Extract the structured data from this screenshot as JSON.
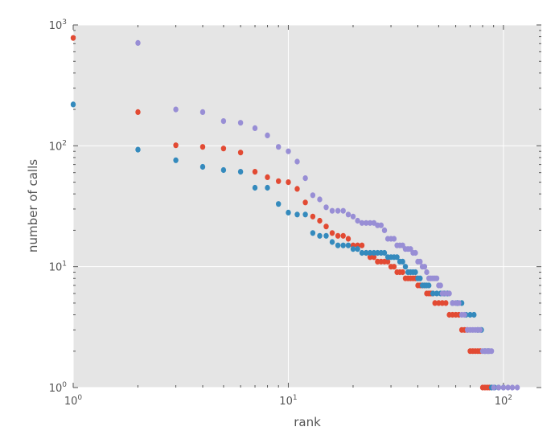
{
  "chart_data": {
    "type": "scatter",
    "title": "",
    "xlabel": "rank",
    "ylabel": "number of calls",
    "xscale": "log",
    "yscale": "log",
    "xlim": [
      1,
      150
    ],
    "ylim": [
      1,
      1000
    ],
    "grid": true,
    "legend": null,
    "x_tick_labels": [
      {
        "value": 1,
        "base": "10",
        "exp": "0"
      },
      {
        "value": 10,
        "base": "10",
        "exp": "1"
      },
      {
        "value": 100,
        "base": "10",
        "exp": "2"
      }
    ],
    "y_tick_labels": [
      {
        "value": 1,
        "base": "10",
        "exp": "0"
      },
      {
        "value": 10,
        "base": "10",
        "exp": "1"
      },
      {
        "value": 100,
        "base": "10",
        "exp": "2"
      },
      {
        "value": 1000,
        "base": "10",
        "exp": "3"
      }
    ],
    "series": [
      {
        "color": "#e24a33",
        "points": [
          [
            1,
            780
          ],
          [
            2,
            190
          ],
          [
            3,
            101
          ],
          [
            4,
            98
          ],
          [
            5,
            95
          ],
          [
            6,
            88
          ],
          [
            7,
            61
          ],
          [
            8,
            55
          ],
          [
            9,
            51
          ],
          [
            10,
            50
          ],
          [
            11,
            44
          ],
          [
            12,
            34
          ],
          [
            13,
            26
          ],
          [
            14,
            24
          ],
          [
            15,
            21.5
          ],
          [
            16,
            19
          ],
          [
            17,
            18
          ],
          [
            18,
            18
          ],
          [
            19,
            17
          ],
          [
            20,
            15
          ],
          [
            21,
            15
          ],
          [
            22,
            15
          ],
          [
            23,
            13
          ],
          [
            24,
            12
          ],
          [
            25,
            12
          ],
          [
            26,
            11
          ],
          [
            27,
            11
          ],
          [
            28,
            11
          ],
          [
            29,
            11
          ],
          [
            30,
            10
          ],
          [
            31,
            10
          ],
          [
            32,
            9
          ],
          [
            33,
            9
          ],
          [
            34,
            9
          ],
          [
            35,
            8
          ],
          [
            36,
            8
          ],
          [
            37,
            8
          ],
          [
            38,
            8
          ],
          [
            39,
            8
          ],
          [
            40,
            7
          ],
          [
            41,
            7
          ],
          [
            42,
            7
          ],
          [
            43,
            7
          ],
          [
            44,
            6
          ],
          [
            45,
            6
          ],
          [
            46,
            6
          ],
          [
            47,
            6
          ],
          [
            48,
            5
          ],
          [
            50,
            5
          ],
          [
            52,
            5
          ],
          [
            54,
            5
          ],
          [
            56,
            4
          ],
          [
            58,
            4
          ],
          [
            60,
            4
          ],
          [
            62,
            4
          ],
          [
            64,
            3
          ],
          [
            66,
            3
          ],
          [
            68,
            3
          ],
          [
            70,
            2
          ],
          [
            72,
            2
          ],
          [
            74,
            2
          ],
          [
            76,
            2
          ],
          [
            78,
            2
          ],
          [
            80,
            1
          ],
          [
            82,
            1
          ],
          [
            84,
            1
          ],
          [
            86,
            1
          ]
        ]
      },
      {
        "color": "#348abd",
        "points": [
          [
            1,
            220
          ],
          [
            2,
            93
          ],
          [
            3,
            76
          ],
          [
            4,
            67
          ],
          [
            5,
            63
          ],
          [
            6,
            61
          ],
          [
            7,
            45
          ],
          [
            8,
            45
          ],
          [
            9,
            33
          ],
          [
            10,
            28
          ],
          [
            11,
            27
          ],
          [
            12,
            27
          ],
          [
            13,
            19
          ],
          [
            14,
            18
          ],
          [
            15,
            18
          ],
          [
            16,
            16
          ],
          [
            17,
            15
          ],
          [
            18,
            15
          ],
          [
            19,
            15
          ],
          [
            20,
            14
          ],
          [
            21,
            14
          ],
          [
            22,
            13
          ],
          [
            23,
            13
          ],
          [
            24,
            13
          ],
          [
            25,
            13
          ],
          [
            26,
            13
          ],
          [
            27,
            13
          ],
          [
            28,
            13
          ],
          [
            29,
            12
          ],
          [
            30,
            12
          ],
          [
            31,
            12
          ],
          [
            32,
            12
          ],
          [
            33,
            11
          ],
          [
            34,
            11
          ],
          [
            35,
            10
          ],
          [
            36,
            9
          ],
          [
            37,
            9
          ],
          [
            38,
            9
          ],
          [
            39,
            9
          ],
          [
            40,
            8
          ],
          [
            41,
            8
          ],
          [
            42,
            7
          ],
          [
            43,
            7
          ],
          [
            44,
            7
          ],
          [
            45,
            7
          ],
          [
            47,
            6
          ],
          [
            49,
            6
          ],
          [
            51,
            6
          ],
          [
            53,
            6
          ],
          [
            55,
            6
          ],
          [
            58,
            5
          ],
          [
            61,
            5
          ],
          [
            64,
            5
          ],
          [
            67,
            4
          ],
          [
            70,
            4
          ],
          [
            73,
            4
          ],
          [
            76,
            3
          ],
          [
            79,
            3
          ],
          [
            82,
            2
          ],
          [
            85,
            2
          ],
          [
            88,
            1
          ],
          [
            91,
            1
          ],
          [
            95,
            1
          ],
          [
            100,
            1
          ]
        ]
      },
      {
        "color": "#988ed5",
        "points": [
          [
            2,
            710
          ],
          [
            3,
            200
          ],
          [
            4,
            190
          ],
          [
            5,
            160
          ],
          [
            6,
            155
          ],
          [
            7,
            140
          ],
          [
            8,
            122
          ],
          [
            9,
            98
          ],
          [
            10,
            90
          ],
          [
            11,
            74
          ],
          [
            12,
            54
          ],
          [
            13,
            39
          ],
          [
            14,
            36
          ],
          [
            15,
            31
          ],
          [
            16,
            29
          ],
          [
            17,
            29
          ],
          [
            18,
            29
          ],
          [
            19,
            27
          ],
          [
            20,
            26
          ],
          [
            21,
            24
          ],
          [
            22,
            23
          ],
          [
            23,
            23
          ],
          [
            24,
            23
          ],
          [
            25,
            23
          ],
          [
            26,
            22
          ],
          [
            27,
            22
          ],
          [
            28,
            20
          ],
          [
            29,
            17
          ],
          [
            30,
            17
          ],
          [
            31,
            17
          ],
          [
            32,
            15
          ],
          [
            33,
            15
          ],
          [
            34,
            15
          ],
          [
            35,
            14
          ],
          [
            36,
            14
          ],
          [
            37,
            14
          ],
          [
            38,
            13
          ],
          [
            39,
            13
          ],
          [
            40,
            11
          ],
          [
            41,
            11
          ],
          [
            42,
            10
          ],
          [
            43,
            10
          ],
          [
            44,
            9
          ],
          [
            45,
            8
          ],
          [
            46,
            8
          ],
          [
            47,
            8
          ],
          [
            48,
            8
          ],
          [
            49,
            8
          ],
          [
            50,
            7
          ],
          [
            51,
            7
          ],
          [
            52,
            6
          ],
          [
            54,
            6
          ],
          [
            56,
            6
          ],
          [
            58,
            5
          ],
          [
            60,
            5
          ],
          [
            62,
            5
          ],
          [
            64,
            4
          ],
          [
            66,
            4
          ],
          [
            68,
            3
          ],
          [
            70,
            3
          ],
          [
            72,
            3
          ],
          [
            74,
            3
          ],
          [
            76,
            3
          ],
          [
            78,
            3
          ],
          [
            80,
            2
          ],
          [
            82,
            2
          ],
          [
            84,
            2
          ],
          [
            86,
            2
          ],
          [
            88,
            2
          ],
          [
            90,
            1
          ],
          [
            95,
            1
          ],
          [
            100,
            1
          ],
          [
            105,
            1
          ],
          [
            110,
            1
          ],
          [
            116,
            1
          ]
        ]
      }
    ]
  }
}
